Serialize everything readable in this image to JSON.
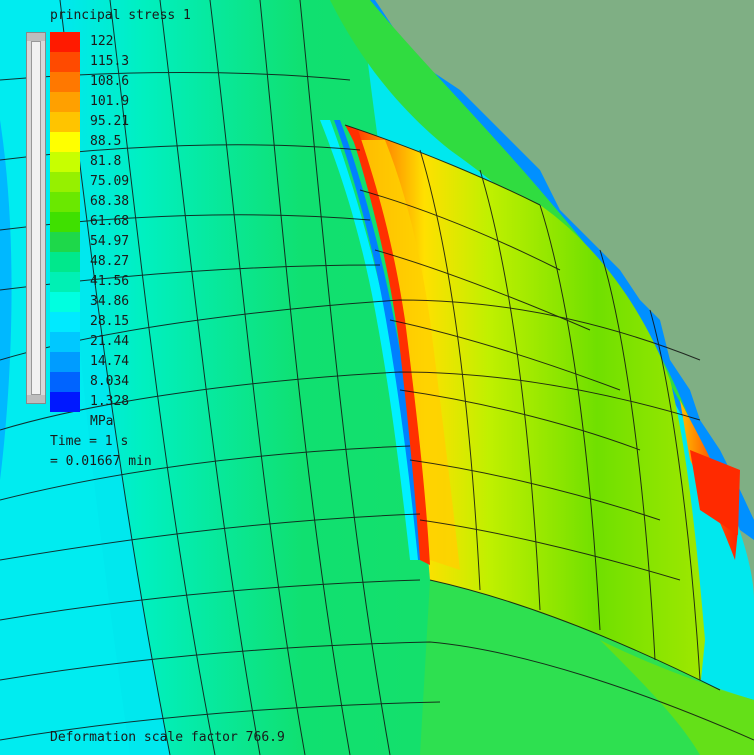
{
  "legend": {
    "title": "principal stress 1",
    "unit": "MPa",
    "time": "Time = 1 s",
    "time_min": "= 0.01667 min",
    "entries": [
      {
        "label": "122",
        "color": "#ff1a00"
      },
      {
        "label": "115.3",
        "color": "#ff4a00"
      },
      {
        "label": "108.6",
        "color": "#ff7800"
      },
      {
        "label": "101.9",
        "color": "#ffa000"
      },
      {
        "label": "95.21",
        "color": "#ffc400"
      },
      {
        "label": "88.5",
        "color": "#ffff00"
      },
      {
        "label": "81.8",
        "color": "#c8ff00"
      },
      {
        "label": "75.09",
        "color": "#96f000"
      },
      {
        "label": "68.38",
        "color": "#6ae800"
      },
      {
        "label": "61.68",
        "color": "#3fe000"
      },
      {
        "label": "54.97",
        "color": "#1ed84a"
      },
      {
        "label": "48.27",
        "color": "#00e88c"
      },
      {
        "label": "41.56",
        "color": "#00f0b4"
      },
      {
        "label": "34.86",
        "color": "#00ffe0"
      },
      {
        "label": "28.15",
        "color": "#00eaff"
      },
      {
        "label": "21.44",
        "color": "#00c8ff"
      },
      {
        "label": "14.74",
        "color": "#009cff"
      },
      {
        "label": "8.034",
        "color": "#0064ff"
      },
      {
        "label": "1.328",
        "color": "#0018ff"
      }
    ]
  },
  "footer": {
    "deformation": "Deformation scale factor 766.9"
  }
}
